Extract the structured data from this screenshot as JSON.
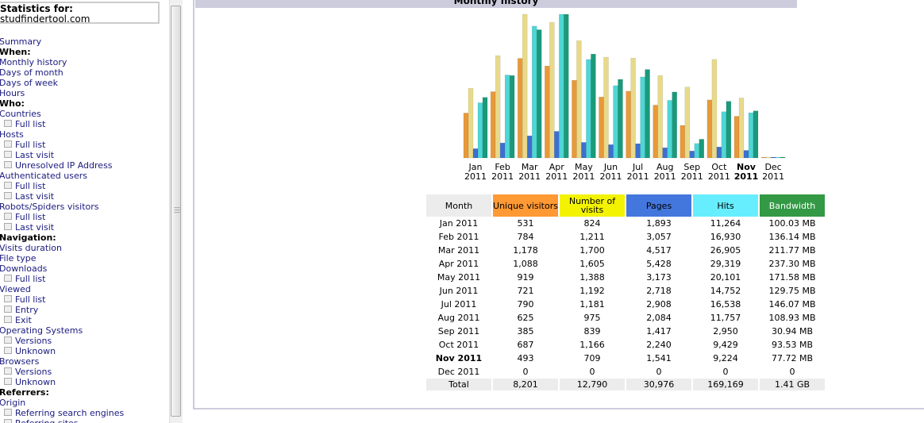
{
  "sidebar": {
    "stats_label": "Statistics for:",
    "site": "studfindertool.com",
    "items": [
      {
        "t": "link",
        "label": "Summary"
      },
      {
        "t": "hdr",
        "label": "When:"
      },
      {
        "t": "link",
        "label": "Monthly history"
      },
      {
        "t": "link",
        "label": "Days of month"
      },
      {
        "t": "link",
        "label": "Days of week"
      },
      {
        "t": "link",
        "label": "Hours"
      },
      {
        "t": "hdr",
        "label": "Who:"
      },
      {
        "t": "link",
        "label": "Countries"
      },
      {
        "t": "sub",
        "label": "Full list"
      },
      {
        "t": "link",
        "label": "Hosts"
      },
      {
        "t": "sub",
        "label": "Full list"
      },
      {
        "t": "sub",
        "label": "Last visit"
      },
      {
        "t": "sub",
        "label": "Unresolved IP Address"
      },
      {
        "t": "link",
        "label": "Authenticated users"
      },
      {
        "t": "sub",
        "label": "Full list"
      },
      {
        "t": "sub",
        "label": "Last visit"
      },
      {
        "t": "link",
        "label": "Robots/Spiders visitors"
      },
      {
        "t": "sub",
        "label": "Full list"
      },
      {
        "t": "sub",
        "label": "Last visit"
      },
      {
        "t": "hdr",
        "label": "Navigation:"
      },
      {
        "t": "link",
        "label": "Visits duration"
      },
      {
        "t": "link",
        "label": "File type"
      },
      {
        "t": "link",
        "label": "Downloads"
      },
      {
        "t": "sub",
        "label": "Full list"
      },
      {
        "t": "link",
        "label": "Viewed"
      },
      {
        "t": "sub",
        "label": "Full list"
      },
      {
        "t": "sub",
        "label": "Entry"
      },
      {
        "t": "sub",
        "label": "Exit"
      },
      {
        "t": "link",
        "label": "Operating Systems"
      },
      {
        "t": "sub",
        "label": "Versions"
      },
      {
        "t": "sub",
        "label": "Unknown"
      },
      {
        "t": "link",
        "label": "Browsers"
      },
      {
        "t": "sub",
        "label": "Versions"
      },
      {
        "t": "sub",
        "label": "Unknown"
      },
      {
        "t": "hdr",
        "label": "Referrers:"
      },
      {
        "t": "link",
        "label": "Origin"
      },
      {
        "t": "sub",
        "label": "Referring search engines"
      },
      {
        "t": "sub",
        "label": "Referring sites"
      }
    ]
  },
  "section_title": "Monthly history",
  "table": {
    "headers": [
      "Month",
      "Unique visitors",
      "Number of visits",
      "Pages",
      "Hits",
      "Bandwidth"
    ],
    "header_colors": [
      "#ececec",
      "#ff9933",
      "#f3f300",
      "#4477dd",
      "#66eeff",
      "#339944"
    ],
    "current_month": "Nov 2011",
    "rows": [
      [
        "Jan 2011",
        "531",
        "824",
        "1,893",
        "11,264",
        "100.03 MB"
      ],
      [
        "Feb 2011",
        "784",
        "1,211",
        "3,057",
        "16,930",
        "136.14 MB"
      ],
      [
        "Mar 2011",
        "1,178",
        "1,700",
        "4,517",
        "26,905",
        "211.77 MB"
      ],
      [
        "Apr 2011",
        "1,088",
        "1,605",
        "5,428",
        "29,319",
        "237.30 MB"
      ],
      [
        "May 2011",
        "919",
        "1,388",
        "3,173",
        "20,101",
        "171.58 MB"
      ],
      [
        "Jun 2011",
        "721",
        "1,192",
        "2,718",
        "14,752",
        "129.75 MB"
      ],
      [
        "Jul 2011",
        "790",
        "1,181",
        "2,908",
        "16,538",
        "146.07 MB"
      ],
      [
        "Aug 2011",
        "625",
        "975",
        "2,084",
        "11,757",
        "108.93 MB"
      ],
      [
        "Sep 2011",
        "385",
        "839",
        "1,417",
        "2,950",
        "30.94 MB"
      ],
      [
        "Oct 2011",
        "687",
        "1,166",
        "2,240",
        "9,429",
        "93.53 MB"
      ],
      [
        "Nov 2011",
        "493",
        "709",
        "1,541",
        "9,224",
        "77.72 MB"
      ],
      [
        "Dec 2011",
        "0",
        "0",
        "0",
        "0",
        "0"
      ]
    ],
    "total": [
      "Total",
      "8,201",
      "12,790",
      "30,976",
      "169,169",
      "1.41 GB"
    ]
  },
  "chart_data": {
    "type": "bar",
    "categories": [
      [
        "Jan",
        "2011"
      ],
      [
        "Feb",
        "2011"
      ],
      [
        "Mar",
        "2011"
      ],
      [
        "Apr",
        "2011"
      ],
      [
        "May",
        "2011"
      ],
      [
        "Jun",
        "2011"
      ],
      [
        "Jul",
        "2011"
      ],
      [
        "Aug",
        "2011"
      ],
      [
        "Sep",
        "2011"
      ],
      [
        "Oct",
        "2011"
      ],
      [
        "Nov",
        "2011"
      ],
      [
        "Dec",
        "2011"
      ]
    ],
    "highlight": "Nov",
    "series": [
      {
        "key": "unique",
        "values": [
          531,
          784,
          1178,
          1088,
          919,
          721,
          790,
          625,
          385,
          687,
          493,
          0
        ],
        "color": "#e8993a"
      },
      {
        "key": "visits",
        "values": [
          824,
          1211,
          1700,
          1605,
          1388,
          1192,
          1181,
          975,
          839,
          1166,
          709,
          0
        ],
        "color": "#e8da8a"
      },
      {
        "key": "pages",
        "values": [
          1893,
          3057,
          4517,
          5428,
          3173,
          2718,
          2908,
          2084,
          1417,
          2240,
          1541,
          0
        ],
        "color": "#3d6fd0"
      },
      {
        "key": "hits",
        "values": [
          11264,
          16930,
          26905,
          29319,
          20101,
          14752,
          16538,
          11757,
          2950,
          9429,
          9224,
          0
        ],
        "color": "#4fd6d6"
      },
      {
        "key": "bandwidth_mb",
        "values": [
          100.03,
          136.14,
          211.77,
          237.3,
          171.58,
          129.75,
          146.07,
          108.93,
          30.94,
          93.53,
          77.72,
          0
        ],
        "color": "#1a9a7a"
      }
    ]
  }
}
